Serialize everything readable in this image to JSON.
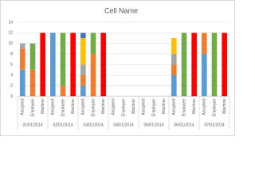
{
  "chart_data": {
    "type": "bar",
    "stacked": true,
    "title": "Cell Name",
    "categories": [
      "Assigned",
      "Employee",
      "Machine",
      "Assigned",
      "Employee",
      "Machine",
      "Assigned",
      "Employee",
      "Machine",
      "Assigned",
      "Employee",
      "Machine",
      "Assigned",
      "Employee",
      "Machine",
      "Assigned",
      "Employee",
      "Machine",
      "Assigned",
      "Employee",
      "Machine"
    ],
    "groups": [
      "01/01/2014",
      "02/01/2014",
      "03/01/2014",
      "04/01/2014",
      "05/01/2014",
      "06/01/2014",
      "07/01/2014"
    ],
    "series": [
      {
        "color": "#5b9bd5",
        "values": [
          5,
          null,
          null,
          12,
          null,
          null,
          2,
          null,
          null,
          null,
          null,
          null,
          null,
          null,
          null,
          4,
          null,
          null,
          8,
          null,
          null
        ]
      },
      {
        "color": "#ed7d31",
        "values": [
          4,
          5,
          null,
          null,
          2,
          null,
          2,
          8,
          null,
          null,
          null,
          null,
          null,
          null,
          null,
          2,
          null,
          null,
          4,
          null,
          null
        ]
      },
      {
        "color": "#a5a5a5",
        "values": [
          1,
          null,
          null,
          null,
          null,
          null,
          2,
          null,
          null,
          null,
          null,
          null,
          null,
          null,
          null,
          2,
          null,
          null,
          null,
          null,
          null
        ]
      },
      {
        "color": "#ffc000",
        "values": [
          null,
          null,
          null,
          null,
          null,
          null,
          5,
          null,
          null,
          null,
          null,
          null,
          null,
          null,
          null,
          3,
          null,
          null,
          null,
          null,
          null
        ]
      },
      {
        "color": "#4472c4",
        "values": [
          null,
          null,
          null,
          null,
          null,
          null,
          1,
          null,
          null,
          null,
          null,
          null,
          null,
          null,
          null,
          null,
          null,
          null,
          null,
          null,
          null
        ]
      },
      {
        "color": "#70ad47",
        "values": [
          null,
          5,
          null,
          null,
          10,
          null,
          null,
          4,
          null,
          null,
          null,
          null,
          null,
          null,
          null,
          null,
          12,
          null,
          null,
          12,
          null
        ]
      },
      {
        "color": "#ff0000",
        "values": [
          null,
          null,
          12,
          null,
          null,
          12,
          null,
          null,
          12,
          null,
          null,
          null,
          null,
          null,
          null,
          null,
          null,
          12,
          null,
          null,
          12
        ]
      }
    ],
    "ylim": [
      0,
      14
    ],
    "yticks": [
      0,
      2,
      4,
      6,
      8,
      10,
      12,
      14
    ],
    "grid": true
  }
}
